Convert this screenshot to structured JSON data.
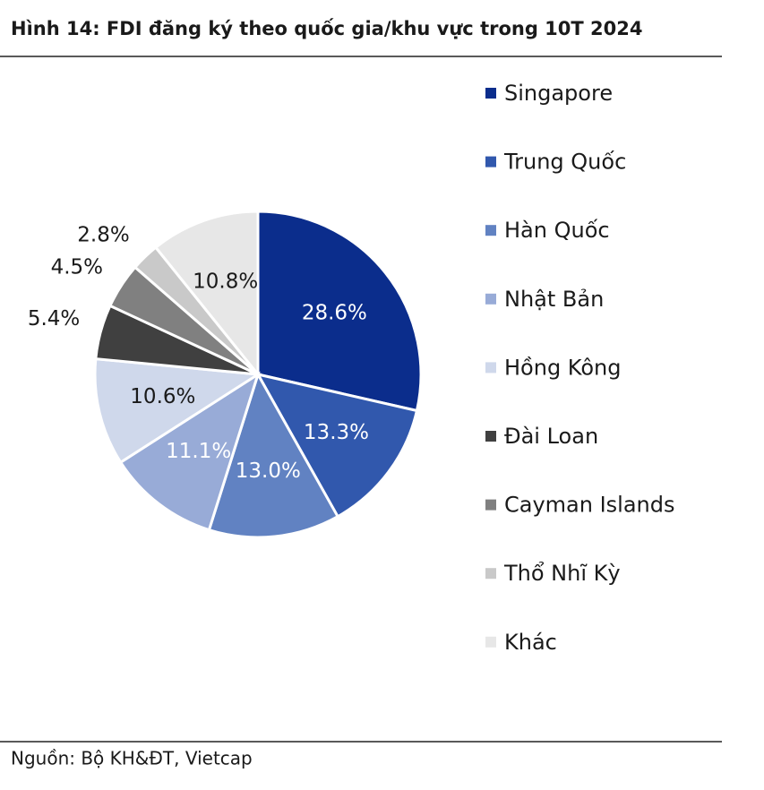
{
  "chart_data": {
    "type": "pie",
    "title": "Hình 14:  FDI đăng ký theo quốc gia/khu vực trong 10T 2024",
    "source": "Nguồn: Bộ KH&ĐT, Vietcap",
    "categories": [
      "Singapore",
      "Trung Quốc",
      "Hàn Quốc",
      "Nhật Bản",
      "Hồng Kông",
      "Đài Loan",
      "Cayman Islands",
      "Thổ Nhĩ Kỳ",
      "Khác"
    ],
    "values": [
      28.6,
      13.3,
      13.0,
      11.1,
      10.6,
      5.4,
      4.5,
      2.8,
      10.8
    ],
    "value_labels": [
      "28.6%",
      "13.3%",
      "13.0%",
      "11.1%",
      "10.6%",
      "5.4%",
      "4.5%",
      "2.8%",
      "10.8%"
    ],
    "colors": [
      "#0b2d8c",
      "#3158ad",
      "#6182c2",
      "#98abd7",
      "#cfd8eb",
      "#404040",
      "#808080",
      "#c9c9c9",
      "#e7e7e7"
    ],
    "legend": "right"
  }
}
